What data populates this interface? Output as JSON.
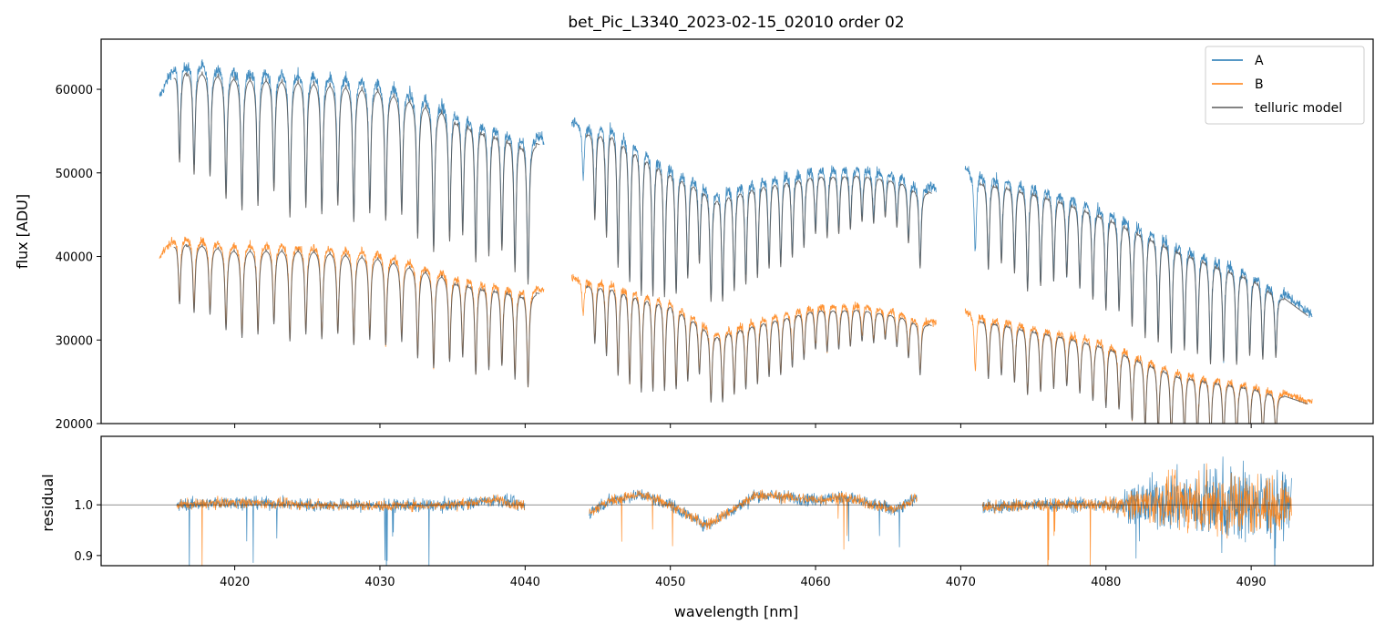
{
  "chart_data": [
    {
      "type": "line",
      "title": "bet_Pic_L3340_2023-02-15_02010  order 02",
      "xlabel": "",
      "ylabel": "flux [ADU]",
      "xlim": [
        4010.8,
        4098.4
      ],
      "ylim": [
        20000,
        66000
      ],
      "yticks": [
        20000,
        30000,
        40000,
        50000,
        60000
      ],
      "legend": {
        "placement": "top-right",
        "entries": [
          "A",
          "B",
          "telluric model"
        ]
      },
      "grid": false,
      "segments": [
        [
          4014.8,
          4041.3
        ],
        [
          4043.2,
          4068.3
        ],
        [
          4070.3,
          4094.2
        ]
      ],
      "series": [
        {
          "name": "A",
          "color": "#1f77b4",
          "continuum": {
            "x": [
              4014.8,
              4016,
              4020,
              4025,
              4030,
              4035,
              4041.3,
              4043.2,
              4046,
              4050,
              4053,
              4056,
              4060,
              4063,
              4066,
              4068.3,
              4070.3,
              4075,
              4080,
              4085,
              4090,
              4094.2
            ],
            "y": [
              59000,
              63500,
              62500,
              62000,
              61000,
              58000,
              54000,
              56000,
              56500,
              52000,
              48500,
              50000,
              51000,
              51000,
              50000,
              48000,
              50500,
              49000,
              46000,
              42000,
              38500,
              33000
            ]
          },
          "noise": 700
        },
        {
          "name": "B",
          "color": "#ff7f0e",
          "continuum": {
            "x": [
              4014.8,
              4016,
              4020,
              4025,
              4030,
              4035,
              4041.3,
              4043.2,
              4046,
              4050,
              4053,
              4056,
              4060,
              4063,
              4066,
              4068.3,
              4070.3,
              4075,
              4080,
              4085,
              4090,
              4094.2
            ],
            "y": [
              40000,
              42500,
              41500,
              41500,
              40500,
              38000,
              36000,
              37500,
              37500,
              35500,
              31500,
              33000,
              34500,
              34500,
              33500,
              32000,
              33500,
              32000,
              30000,
              26500,
              25000,
              22500
            ]
          },
          "noise": 500
        },
        {
          "name": "telluric model",
          "color": "#5a5a5a",
          "applies_to": [
            "A",
            "B"
          ]
        }
      ],
      "absorption_lines": {
        "centers": [
          4016.2,
          4017.2,
          4018.3,
          4019.4,
          4020.5,
          4021.6,
          4022.7,
          4023.8,
          4024.9,
          4026.0,
          4027.1,
          4028.2,
          4029.3,
          4030.4,
          4031.5,
          4032.6,
          4033.7,
          4034.8,
          4035.7,
          4036.6,
          4037.5,
          4038.4,
          4039.3,
          4040.2,
          4044.0,
          4044.8,
          4045.6,
          4046.4,
          4047.2,
          4048.0,
          4048.8,
          4049.6,
          4050.4,
          4051.2,
          4052.0,
          4052.8,
          4053.6,
          4054.4,
          4055.2,
          4056.0,
          4056.8,
          4057.6,
          4058.4,
          4059.2,
          4060.0,
          4060.8,
          4061.6,
          4062.4,
          4063.2,
          4064.0,
          4064.8,
          4065.6,
          4066.4,
          4067.2,
          4071.0,
          4071.9,
          4072.8,
          4073.7,
          4074.6,
          4075.5,
          4076.4,
          4077.3,
          4078.2,
          4079.1,
          4080.0,
          4080.9,
          4081.8,
          4082.7,
          4083.6,
          4084.5,
          4085.4,
          4086.3,
          4087.2,
          4088.1,
          4089.0,
          4089.9,
          4090.8,
          4091.7
        ],
        "depth_fraction": [
          0.18,
          0.2,
          0.2,
          0.24,
          0.26,
          0.25,
          0.22,
          0.27,
          0.25,
          0.26,
          0.24,
          0.27,
          0.25,
          0.26,
          0.24,
          0.28,
          0.3,
          0.27,
          0.25,
          0.3,
          0.28,
          0.26,
          0.3,
          0.32,
          0.12,
          0.2,
          0.24,
          0.3,
          0.32,
          0.34,
          0.33,
          0.32,
          0.3,
          0.25,
          0.2,
          0.28,
          0.28,
          0.26,
          0.25,
          0.24,
          0.22,
          0.22,
          0.2,
          0.18,
          0.15,
          0.16,
          0.15,
          0.14,
          0.12,
          0.12,
          0.1,
          0.12,
          0.15,
          0.2,
          0.2,
          0.22,
          0.2,
          0.22,
          0.26,
          0.24,
          0.22,
          0.2,
          0.22,
          0.24,
          0.26,
          0.25,
          0.28,
          0.3,
          0.3,
          0.32,
          0.3,
          0.3,
          0.32,
          0.3,
          0.3,
          0.26,
          0.25,
          0.22
        ]
      }
    },
    {
      "type": "line",
      "title": "",
      "xlabel": "wavelength [nm]",
      "ylabel": "residual",
      "xlim": [
        4010.8,
        4098.4
      ],
      "ylim": [
        0.88,
        1.135
      ],
      "yticks": [
        0.9,
        1.0
      ],
      "xticks": [
        4020,
        4030,
        4040,
        4050,
        4060,
        4070,
        4080,
        4090
      ],
      "reference_line": 1.0,
      "segments": [
        [
          4016.0,
          4040.0
        ],
        [
          4044.4,
          4067.0
        ],
        [
          4071.5,
          4092.8
        ]
      ],
      "trend": {
        "x": [
          4016,
          4020,
          4025,
          4030,
          4035,
          4038,
          4040,
          4044.4,
          4046,
          4048,
          4050,
          4051.5,
          4052.5,
          4054,
          4056,
          4058,
          4060,
          4062,
          4064,
          4065.5,
          4067,
          4071.5,
          4075,
          4080,
          4085,
          4090,
          4092.8
        ],
        "y": [
          1.0,
          1.005,
          1.0,
          0.998,
          1.0,
          1.01,
          0.998,
          0.985,
          1.01,
          1.02,
          1.0,
          0.975,
          0.96,
          0.985,
          1.02,
          1.015,
          1.01,
          1.015,
          1.0,
          0.99,
          1.015,
          0.995,
          1.0,
          1.0,
          1.005,
          1.0,
          1.0
        ]
      },
      "series": [
        {
          "name": "A",
          "color": "#1f77b4",
          "noise_profile": {
            "x": [
              4016,
              4080,
              4083,
              4088,
              4092.8
            ],
            "y": [
              0.012,
              0.014,
              0.05,
              0.08,
              0.06
            ]
          }
        },
        {
          "name": "B",
          "color": "#ff7f0e",
          "noise_profile": {
            "x": [
              4016,
              4080,
              4083,
              4088,
              4092.8
            ],
            "y": [
              0.01,
              0.012,
              0.04,
              0.07,
              0.05
            ]
          }
        }
      ]
    }
  ]
}
